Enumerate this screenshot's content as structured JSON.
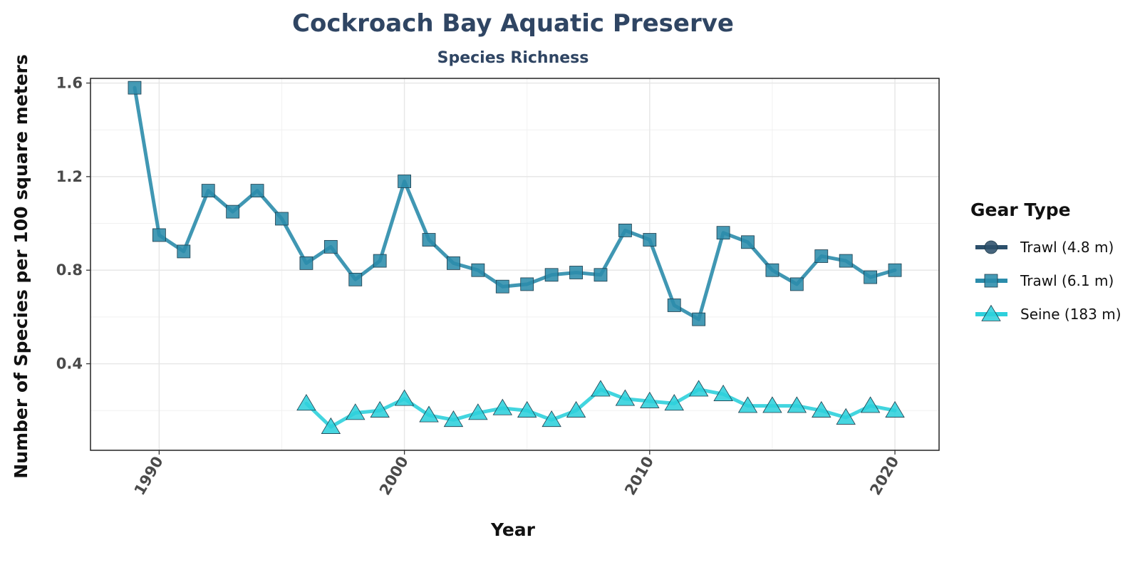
{
  "chart_data": {
    "type": "line",
    "title": "Cockroach Bay Aquatic Preserve",
    "subtitle": "Species Richness",
    "xlabel": "Year",
    "ylabel": "Number of Species per 100 square meters",
    "xlim": [
      1987.2,
      2021.8
    ],
    "ylim": [
      0.03,
      1.62
    ],
    "x_ticks": [
      1990,
      2000,
      2010,
      2020
    ],
    "y_ticks": [
      0.4,
      0.8,
      1.2,
      1.6
    ],
    "y_tick_labels": [
      "0.4",
      "0.8",
      "1.2",
      "1.6"
    ],
    "grid": true,
    "legend": {
      "title": "Gear Type",
      "position": "right",
      "entries": [
        "Trawl (4.8 m)",
        "Trawl (6.1 m)",
        "Seine (183 m)"
      ]
    },
    "series": [
      {
        "name": "Trawl (4.8 m)",
        "color": "#2c506b",
        "marker": "circle",
        "x": [],
        "y": []
      },
      {
        "name": "Trawl (6.1 m)",
        "color": "#2b8cab",
        "marker": "square",
        "x": [
          1989,
          1990,
          1991,
          1992,
          1993,
          1994,
          1995,
          1996,
          1997,
          1998,
          1999,
          2000,
          2001,
          2002,
          2003,
          2004,
          2005,
          2006,
          2007,
          2008,
          2009,
          2010,
          2011,
          2012,
          2013,
          2014,
          2015,
          2016,
          2017,
          2018,
          2019,
          2020
        ],
        "y": [
          1.58,
          0.95,
          0.88,
          1.14,
          1.05,
          1.14,
          1.02,
          0.83,
          0.9,
          0.76,
          0.84,
          1.18,
          0.93,
          0.83,
          0.8,
          0.73,
          0.74,
          0.78,
          0.79,
          0.78,
          0.97,
          0.93,
          0.65,
          0.59,
          0.96,
          0.92,
          0.8,
          0.74,
          0.86,
          0.84,
          0.77,
          0.8
        ]
      },
      {
        "name": "Seine (183 m)",
        "color": "#2ed0dc",
        "marker": "triangle",
        "x": [
          1996,
          1997,
          1998,
          1999,
          2000,
          2001,
          2002,
          2003,
          2004,
          2005,
          2006,
          2007,
          2008,
          2009,
          2010,
          2011,
          2012,
          2013,
          2014,
          2015,
          2016,
          2017,
          2018,
          2019,
          2020
        ],
        "y": [
          0.23,
          0.13,
          0.19,
          0.2,
          0.25,
          0.18,
          0.16,
          0.19,
          0.21,
          0.2,
          0.16,
          0.2,
          0.29,
          0.25,
          0.24,
          0.23,
          0.29,
          0.27,
          0.22,
          0.22,
          0.22,
          0.2,
          0.17,
          0.22,
          0.2
        ]
      }
    ]
  }
}
